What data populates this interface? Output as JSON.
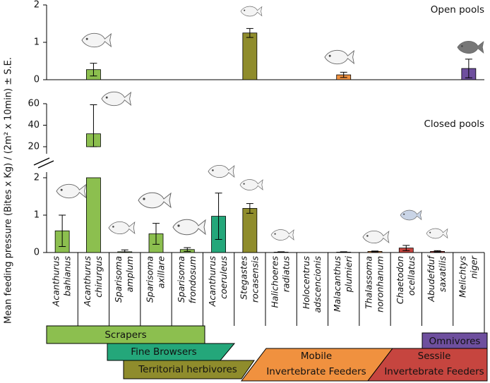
{
  "y_label": "Mean feeding pressure (Bites x Kg) / (2m² x 10min) ± S.E.",
  "chart_data": [
    {
      "type": "bar",
      "title": "Open pools",
      "values": [
        0,
        0.27,
        0,
        0,
        0,
        0,
        1.25,
        0,
        0,
        0.13,
        0,
        0,
        0,
        0.3
      ],
      "errors": [
        0,
        0.17,
        0,
        0,
        0,
        0,
        0.12,
        0,
        0,
        0.07,
        0,
        0,
        0,
        0.25
      ],
      "colors": [
        "#8cbf4f",
        "#8cbf4f",
        "#8cbf4f",
        "#8cbf4f",
        "#8cbf4f",
        "#24a77a",
        "#8f8c2c",
        "#f0913f",
        "#f0913f",
        "#f0913f",
        "#f0913f",
        "#c6453f",
        "#c6453f",
        "#6e4f9e"
      ],
      "ylim": [
        0,
        2
      ],
      "yticks": [
        0,
        1,
        2
      ]
    },
    {
      "type": "bar",
      "title": "Closed pools",
      "categories": [
        [
          "Acanthurus",
          "bahianus"
        ],
        [
          "Acanthurus",
          "chirurgus"
        ],
        [
          "Sparisoma",
          "amplum"
        ],
        [
          "Sparisoma",
          "axillare"
        ],
        [
          "Sparisoma",
          "frondosum"
        ],
        [
          "Acanthurus",
          "coeruleus"
        ],
        [
          "Stegastes",
          "rocasensis"
        ],
        [
          "Halichoeres",
          "radiatus"
        ],
        [
          "Holocentrus",
          "adscencionis"
        ],
        [
          "Malacanthus",
          "plumieri"
        ],
        [
          "Thalassoma",
          "noronhanum"
        ],
        [
          "Chaetodon",
          "ocellatus"
        ],
        [
          "Abudefduf",
          "saxatilis"
        ],
        [
          "Melichtys",
          "niger"
        ]
      ],
      "values": [
        0.58,
        32,
        0.02,
        0.5,
        0.08,
        0.97,
        1.18,
        0.01,
        0,
        0.01,
        0.03,
        0.12,
        0.03,
        0
      ],
      "errors": [
        0.42,
        27,
        0.05,
        0.28,
        0.05,
        0.62,
        0.13,
        0.01,
        0,
        0.01,
        0.01,
        0.07,
        0.02,
        0
      ],
      "colors": [
        "#8cbf4f",
        "#8cbf4f",
        "#8cbf4f",
        "#8cbf4f",
        "#8cbf4f",
        "#24a77a",
        "#8f8c2c",
        "#f0913f",
        "#f0913f",
        "#f0913f",
        "#f0913f",
        "#c6453f",
        "#c6453f",
        "#6e4f9e"
      ],
      "ylim": [
        0,
        60
      ],
      "ybreak": [
        2,
        20
      ],
      "yticks": [
        0,
        1,
        2,
        20,
        40,
        60
      ]
    }
  ],
  "groups": [
    [
      "Scrapers"
    ],
    [
      "Fine Browsers"
    ],
    [
      "Territorial herbivores"
    ],
    [
      "Mobile",
      "Invertebrate Feeders"
    ],
    [
      "Omnivores"
    ],
    [
      "Sessile",
      "Invertebrate Feeders"
    ]
  ]
}
